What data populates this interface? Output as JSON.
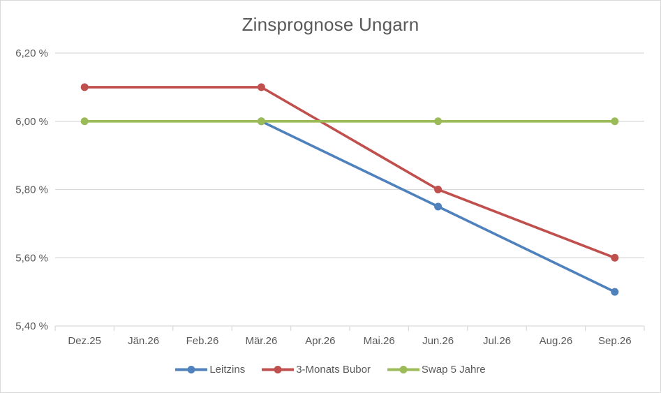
{
  "chart_data": {
    "type": "line",
    "title": "Zinsprognose Ungarn",
    "categories": [
      "Dez.25",
      "Jän.26",
      "Feb.26",
      "Mär.26",
      "Apr.26",
      "Mai.26",
      "Jun.26",
      "Jul.26",
      "Aug.26",
      "Sep.26"
    ],
    "series": [
      {
        "name": "Leitzins",
        "color": "#4F81BD",
        "values": [
          null,
          null,
          null,
          6.0,
          null,
          null,
          5.75,
          null,
          null,
          5.5
        ]
      },
      {
        "name": "3-Monats Bubor",
        "color": "#C0504D",
        "values": [
          6.1,
          null,
          null,
          6.1,
          null,
          null,
          5.8,
          null,
          null,
          5.6
        ]
      },
      {
        "name": "Swap 5 Jahre",
        "color": "#9BBB59",
        "values": [
          6.0,
          null,
          null,
          6.0,
          null,
          null,
          6.0,
          null,
          null,
          6.0
        ]
      }
    ],
    "y_axis": {
      "min": 5.4,
      "max": 6.2,
      "step": 0.2,
      "ticks": [
        {
          "value": 5.4,
          "label": "5,40 %"
        },
        {
          "value": 5.6,
          "label": "5,60 %"
        },
        {
          "value": 5.8,
          "label": "5,80 %"
        },
        {
          "value": 6.0,
          "label": "6,00 %"
        },
        {
          "value": 6.2,
          "label": "6,20 %"
        }
      ]
    },
    "legend_position": "bottom",
    "grid": true,
    "colors": {
      "grid": "#D9D9D9",
      "text": "#595959",
      "border": "#D9D9D9",
      "background": "#FFFFFF"
    }
  }
}
